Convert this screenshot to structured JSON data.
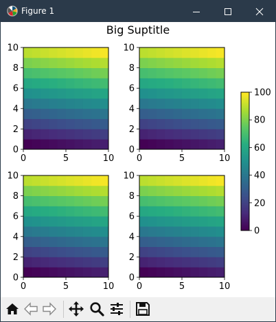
{
  "window": {
    "title": "Figure 1",
    "buttons": [
      "minimize",
      "maximize",
      "close"
    ]
  },
  "figure": {
    "suptitle": "Big Suptitle"
  },
  "toolbar": {
    "items": [
      "home-icon",
      "back-arrow-icon",
      "forward-arrow-icon",
      "pan-icon",
      "zoom-icon",
      "configure-subplots-icon",
      "save-icon"
    ]
  },
  "chart_data": [
    {
      "type": "heatmap",
      "title": "",
      "xlabel": "",
      "ylabel": "",
      "x_range": [
        0,
        10
      ],
      "y_range": [
        0,
        10
      ],
      "xticks": [
        0,
        5,
        10
      ],
      "yticks": [
        0,
        2,
        4,
        6,
        8,
        10
      ],
      "nx": 10,
      "ny": 10,
      "values_description_formula": "value = 10*row + col, row 0 at bottom",
      "vmin": 0,
      "vmax": 100,
      "colormap": "viridis"
    },
    {
      "type": "heatmap",
      "title": "",
      "xlabel": "",
      "ylabel": "",
      "x_range": [
        0,
        10
      ],
      "y_range": [
        0,
        10
      ],
      "xticks": [
        0,
        5,
        10
      ],
      "yticks": [
        0,
        2,
        4,
        6,
        8,
        10
      ],
      "nx": 10,
      "ny": 10,
      "vmin": 0,
      "vmax": 100,
      "colormap": "viridis"
    },
    {
      "type": "heatmap",
      "title": "",
      "xlabel": "",
      "ylabel": "",
      "x_range": [
        0,
        10
      ],
      "y_range": [
        0,
        10
      ],
      "xticks": [
        0,
        5,
        10
      ],
      "yticks": [
        0,
        2,
        4,
        6,
        8,
        10
      ],
      "nx": 10,
      "ny": 10,
      "vmin": 0,
      "vmax": 100,
      "colormap": "viridis"
    },
    {
      "type": "heatmap",
      "title": "",
      "xlabel": "",
      "ylabel": "",
      "x_range": [
        0,
        10
      ],
      "y_range": [
        0,
        10
      ],
      "xticks": [
        0,
        5,
        10
      ],
      "yticks": [
        0,
        2,
        4,
        6,
        8,
        10
      ],
      "nx": 10,
      "ny": 10,
      "vmin": 0,
      "vmax": 100,
      "colormap": "viridis"
    }
  ],
  "colorbar": {
    "ticks": [
      0,
      20,
      40,
      60,
      80,
      100
    ],
    "min": 0,
    "max": 100,
    "colormap": "viridis"
  },
  "colors": {
    "titlebar": "#2b3a4a",
    "toolbar": "#f0f0f0"
  }
}
